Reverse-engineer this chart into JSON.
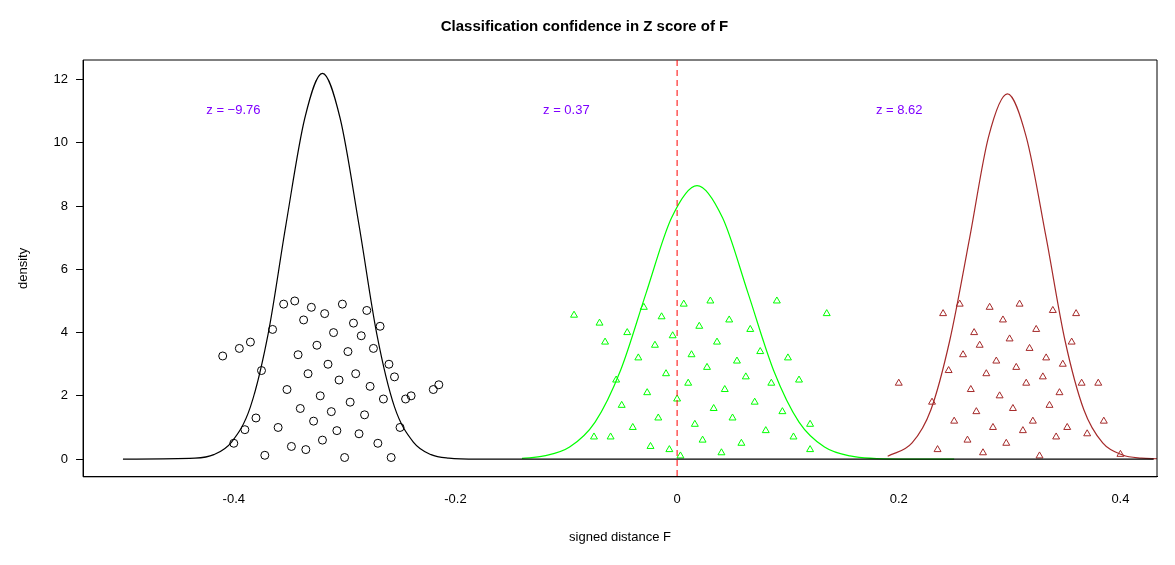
{
  "chart_data": {
    "type": "scatter",
    "title": "Classification confidence in Z score of F",
    "xlabel": "signed distance F",
    "ylabel": "density",
    "xlim": [
      -0.536,
      0.433
    ],
    "ylim": [
      -0.56,
      12.62
    ],
    "xticks": [
      -0.4,
      -0.2,
      0.0,
      0.2,
      0.4
    ],
    "yticks": [
      0,
      2,
      4,
      6,
      8,
      10,
      12
    ],
    "grid": false,
    "legend": false,
    "ref_lines": [
      {
        "axis": "x",
        "value": 0,
        "color": "#ff0000",
        "line_style": "dashed"
      }
    ],
    "annotations": [
      "z = −9.76",
      "z = 0.37",
      "z = 8.62"
    ],
    "series": [
      {
        "type": "line",
        "color": "#000000",
        "marker": "none",
        "line_style": "solid",
        "x": [
          -0.5,
          -0.435,
          -0.418,
          -0.402,
          -0.385,
          -0.369,
          -0.353,
          -0.336,
          -0.32,
          -0.304,
          -0.287,
          -0.271,
          -0.255,
          -0.238,
          -0.222,
          -0.206,
          -0.18,
          0.43
        ],
        "values": [
          0,
          0.03,
          0.14,
          0.54,
          1.65,
          3.96,
          7.4,
          10.77,
          12.2,
          10.77,
          7.4,
          3.96,
          1.65,
          0.54,
          0.14,
          0.03,
          0,
          0
        ]
      },
      {
        "type": "line",
        "color": "#00ff00",
        "marker": "none",
        "line_style": "solid",
        "x": [
          -0.14,
          -0.12,
          -0.097,
          -0.074,
          -0.051,
          -0.028,
          -0.005,
          0.018,
          0.041,
          0.064,
          0.087,
          0.11,
          0.133,
          0.156,
          0.179,
          0.2,
          0.25
        ],
        "values": [
          0.02,
          0.1,
          0.38,
          1.17,
          2.81,
          5.25,
          7.63,
          8.65,
          7.63,
          5.25,
          2.81,
          1.17,
          0.38,
          0.1,
          null,
          0,
          0
        ]
      },
      {
        "type": "line",
        "color": "#a52a2a",
        "marker": "none",
        "line_style": "solid",
        "x": [
          0.19,
          0.212,
          0.229,
          0.246,
          0.264,
          0.281,
          0.298,
          0.315,
          0.333,
          0.35,
          0.367,
          0.384,
          0.402,
          0.419,
          0.433
        ],
        "values": [
          0.09,
          0.51,
          1.56,
          3.75,
          7.0,
          10.19,
          11.55,
          10.19,
          7.0,
          3.75,
          1.56,
          0.51,
          0.13,
          0.03,
          0.01
        ]
      },
      {
        "type": "scatter",
        "color": "#000000",
        "marker": "circle",
        "x": [
          -0.41,
          -0.39,
          -0.385,
          -0.38,
          -0.375,
          -0.372,
          -0.365,
          -0.36,
          -0.355,
          -0.352,
          -0.348,
          -0.345,
          -0.342,
          -0.34,
          -0.337,
          -0.335,
          -0.333,
          -0.33,
          -0.328,
          -0.325,
          -0.322,
          -0.32,
          -0.318,
          -0.315,
          -0.312,
          -0.31,
          -0.307,
          -0.305,
          -0.302,
          -0.3,
          -0.297,
          -0.295,
          -0.292,
          -0.29,
          -0.287,
          -0.285,
          -0.282,
          -0.28,
          -0.277,
          -0.274,
          -0.27,
          -0.268,
          -0.265,
          -0.26,
          -0.258,
          -0.255,
          -0.25,
          -0.245,
          -0.24,
          -0.22,
          -0.215,
          -0.395,
          -0.4
        ],
        "values": [
          3.26,
          0.93,
          3.7,
          1.3,
          2.8,
          0.12,
          4.1,
          1.0,
          4.9,
          2.2,
          0.4,
          5.0,
          3.3,
          1.6,
          4.4,
          0.3,
          2.7,
          4.8,
          1.2,
          3.6,
          2.0,
          0.6,
          4.6,
          3.0,
          1.5,
          4.0,
          0.9,
          2.5,
          4.9,
          0.05,
          3.4,
          1.8,
          4.3,
          2.7,
          0.8,
          3.9,
          1.4,
          4.7,
          2.3,
          3.5,
          0.5,
          4.2,
          1.9,
          3.0,
          0.05,
          2.6,
          1.0,
          1.9,
          2.0,
          2.2,
          2.35,
          3.5,
          0.5
        ]
      },
      {
        "type": "scatter",
        "color": "#00ff00",
        "marker": "triangle",
        "x": [
          -0.093,
          -0.075,
          -0.07,
          -0.065,
          -0.06,
          -0.055,
          -0.05,
          -0.045,
          -0.04,
          -0.035,
          -0.03,
          -0.027,
          -0.024,
          -0.02,
          -0.017,
          -0.014,
          -0.01,
          -0.007,
          -0.004,
          0.0,
          0.003,
          0.006,
          0.01,
          0.013,
          0.016,
          0.02,
          0.023,
          0.027,
          0.03,
          0.033,
          0.036,
          0.04,
          0.043,
          0.047,
          0.05,
          0.054,
          0.058,
          0.062,
          0.066,
          0.07,
          0.075,
          0.08,
          0.085,
          0.09,
          0.095,
          0.1,
          0.105,
          0.11,
          0.12,
          0.135,
          0.12
        ],
        "values": [
          4.55,
          0.7,
          4.3,
          3.7,
          0.7,
          2.5,
          1.7,
          4.0,
          1.0,
          3.2,
          4.8,
          2.1,
          0.4,
          3.6,
          1.3,
          4.5,
          2.7,
          0.3,
          3.9,
          1.9,
          0.1,
          4.9,
          2.4,
          3.3,
          1.1,
          4.2,
          0.6,
          2.9,
          5.0,
          1.6,
          3.7,
          0.2,
          2.2,
          4.4,
          1.3,
          3.1,
          0.5,
          2.6,
          4.1,
          1.8,
          3.4,
          0.9,
          2.4,
          5.0,
          1.5,
          3.2,
          0.7,
          2.5,
          0.3,
          4.6,
          1.1
        ]
      },
      {
        "type": "scatter",
        "color": "#a52a2a",
        "marker": "triangle",
        "x": [
          0.2,
          0.23,
          0.235,
          0.24,
          0.245,
          0.25,
          0.255,
          0.258,
          0.262,
          0.265,
          0.268,
          0.27,
          0.273,
          0.276,
          0.279,
          0.282,
          0.285,
          0.288,
          0.291,
          0.294,
          0.297,
          0.3,
          0.303,
          0.306,
          0.309,
          0.312,
          0.315,
          0.318,
          0.321,
          0.324,
          0.327,
          0.33,
          0.333,
          0.336,
          0.339,
          0.342,
          0.345,
          0.348,
          0.352,
          0.356,
          0.36,
          0.365,
          0.37,
          0.38,
          0.385,
          0.4
        ],
        "values": [
          2.4,
          1.8,
          0.3,
          4.6,
          2.8,
          1.2,
          4.9,
          3.3,
          0.6,
          2.2,
          4.0,
          1.5,
          3.6,
          0.2,
          2.7,
          4.8,
          1.0,
          3.1,
          2.0,
          4.4,
          0.5,
          3.8,
          1.6,
          2.9,
          4.9,
          0.9,
          2.4,
          3.5,
          1.2,
          4.1,
          0.1,
          2.6,
          3.2,
          1.7,
          4.7,
          0.7,
          2.1,
          3.0,
          1.0,
          3.7,
          4.6,
          2.4,
          0.8,
          2.4,
          1.2,
          0.15
        ]
      }
    ]
  }
}
